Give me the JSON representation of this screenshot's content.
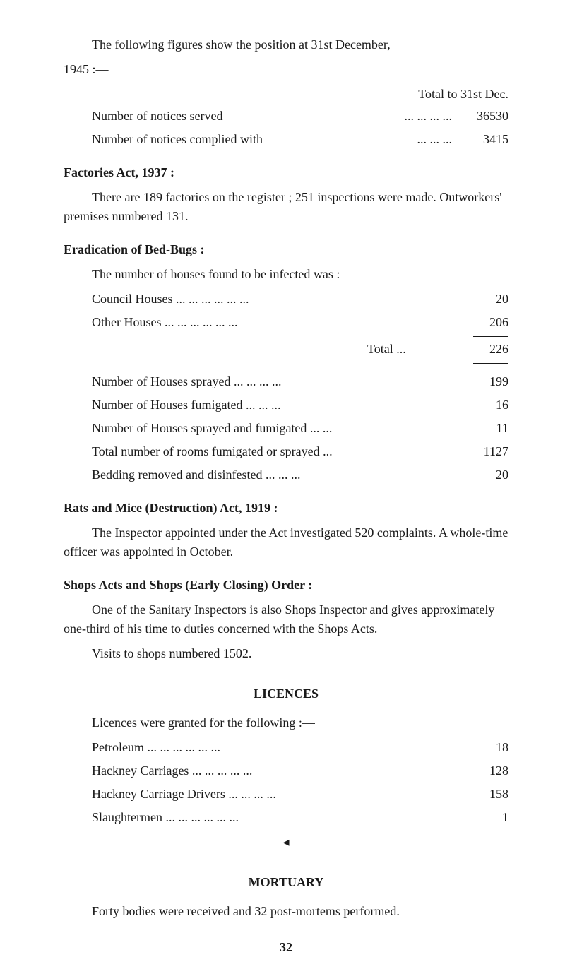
{
  "intro": {
    "line1": "The following figures show the position at 31st December,",
    "line2": "1945 :—"
  },
  "totalHeader": "Total to 31st Dec.",
  "notices": {
    "served": {
      "label": "Number of notices served",
      "dots": "...        ...        ...        ...",
      "value": "36530"
    },
    "complied": {
      "label": "Number of notices complied with",
      "dots": "...        ...        ...",
      "value": "3415"
    }
  },
  "factories": {
    "heading": "Factories Act, 1937 :",
    "body": "There are 189 factories on the register ; 251 inspections were made.   Outworkers' premises numbered 131."
  },
  "bedbugs": {
    "heading": "Eradication of Bed-Bugs :",
    "intro": "The number of houses found to be infected was :—",
    "rows": {
      "council": {
        "label": "Council Houses  ...        ...        ...        ...        ...        ...",
        "value": "20"
      },
      "other": {
        "label": "Other Houses      ...        ...        ...        ...        ...        ...",
        "value": "206"
      }
    },
    "total": {
      "label": "Total      ...",
      "value": "226"
    },
    "details": {
      "sprayed": {
        "label": "Number of Houses sprayed        ...        ...        ...        ...",
        "value": "199"
      },
      "fumigated": {
        "label": "Number of Houses fumigated              ...        ...        ...",
        "value": "16"
      },
      "sprayedFumigated": {
        "label": "Number of Houses sprayed and fumigated   ...        ...",
        "value": "11"
      },
      "roomsTotal": {
        "label": "Total number of rooms fumigated or sprayed          ...",
        "value": "1127"
      },
      "bedding": {
        "label": "Bedding removed and disinfested        ...        ...        ...",
        "value": "20"
      }
    }
  },
  "rats": {
    "heading": "Rats and Mice (Destruction) Act, 1919 :",
    "body": "The Inspector appointed under the Act investigated 520 complaints.   A whole-time officer was appointed in October."
  },
  "shops": {
    "heading": "Shops Acts and Shops (Early Closing) Order :",
    "body1": "One of the Sanitary Inspectors is also Shops Inspector and gives approximately one-third of his time to duties concerned with the Shops Acts.",
    "body2": "Visits to shops numbered 1502."
  },
  "licences": {
    "heading": "LICENCES",
    "intro": "Licences were granted for the following :—",
    "rows": {
      "petroleum": {
        "label": "Petroleum              ...        ...        ...        ...        ...        ...",
        "value": "18"
      },
      "hackney": {
        "label": "Hackney Carriages        ...        ...        ...        ...        ...",
        "value": "128"
      },
      "hackneyDrivers": {
        "label": "Hackney Carriage Drivers        ...        ...        ...        ...",
        "value": "158"
      },
      "slaughtermen": {
        "label": "Slaughtermen      ...        ...        ...        ...        ...        ...",
        "value": "1"
      }
    }
  },
  "mortuary": {
    "glyph": "◂",
    "heading": "MORTUARY",
    "body": "Forty bodies were received and 32 post-mortems performed."
  },
  "pageNumber": "32"
}
